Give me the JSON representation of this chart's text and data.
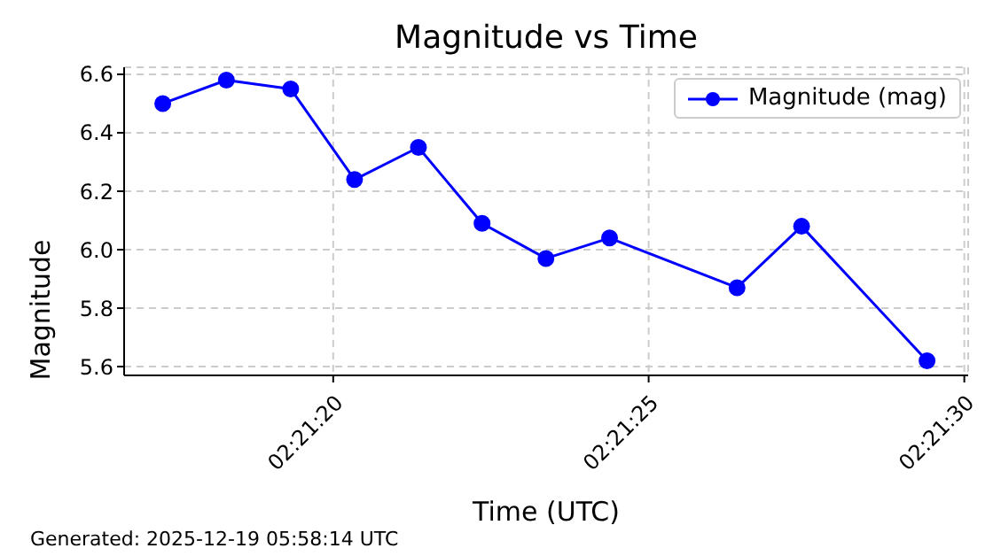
{
  "chart_data": {
    "type": "line",
    "title": "Magnitude vs Time",
    "xlabel": "Time (UTC)",
    "ylabel": "Magnitude",
    "annotations": [
      "Generated: 2025-12-19 05:58:14 UTC"
    ],
    "x": [
      2.354806,
      2.355086,
      2.355369,
      2.35565,
      2.355931,
      2.356211,
      2.356492,
      2.356772,
      2.357333,
      2.357617,
      2.358169
    ],
    "series": [
      {
        "name": "Magnitude (mag)",
        "color": "#0000ff",
        "values": [
          6.5,
          6.58,
          6.55,
          6.24,
          6.35,
          6.09,
          5.97,
          6.04,
          5.87,
          6.08,
          5.62
        ]
      }
    ],
    "xlim": [
      2.354636,
      2.35835
    ],
    "xticks": [
      {
        "value": 2.355556,
        "label": "02:21:20"
      },
      {
        "value": 2.356944,
        "label": "02:21:25"
      },
      {
        "value": 2.358333,
        "label": "02:21:30"
      }
    ],
    "ylim": [
      5.57,
      6.624
    ],
    "yticks": [
      5.6,
      5.8,
      {
        "value": 6,
        "label": "6.0"
      },
      6.2,
      6.4,
      6.6
    ],
    "grid": true,
    "legend": "top right",
    "marker": "circle",
    "line_style": "solid"
  }
}
